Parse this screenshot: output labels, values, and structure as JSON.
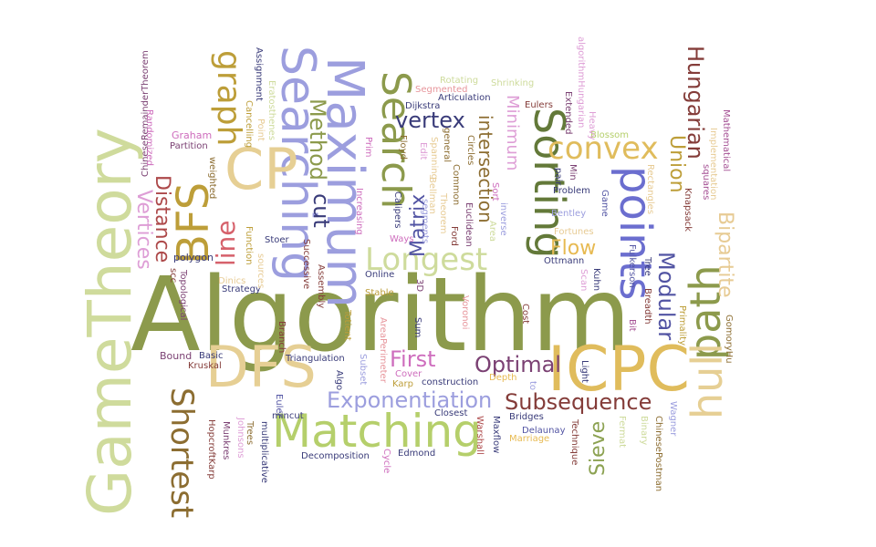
{
  "words": [
    {
      "text": "Algorithm",
      "color": "#8c9a4c"
    },
    {
      "text": "GameTheory",
      "color": "#cfdb9c"
    },
    {
      "text": "DFS",
      "color": "#e6cf94"
    },
    {
      "text": "ICPC",
      "color": "#e0bc5c"
    },
    {
      "text": "Matching",
      "color": "#b5cf6b"
    },
    {
      "text": "Maximum",
      "color": "#9c9ede"
    },
    {
      "text": "Searching",
      "color": "#9c9ede"
    },
    {
      "text": "Search",
      "color": "#8c9a4c"
    },
    {
      "text": "Sorting",
      "color": "#637939"
    },
    {
      "text": "points",
      "color": "#6b6ecf"
    },
    {
      "text": "path",
      "color": "#8c9a4c"
    },
    {
      "text": "hull",
      "color": "#e6cf94"
    },
    {
      "text": "CP",
      "color": "#e6cf94"
    },
    {
      "text": "BFS",
      "color": "#bd9e39"
    },
    {
      "text": "graph",
      "color": "#bd9e39"
    },
    {
      "text": "Shortest",
      "color": "#8c6d31"
    },
    {
      "text": "Longest",
      "color": "#cedb9c"
    },
    {
      "text": "convex",
      "color": "#e0bc5c"
    },
    {
      "text": "Exponentiation",
      "color": "#9c9ede"
    },
    {
      "text": "Subsequence",
      "color": "#843c39"
    },
    {
      "text": "Optimal",
      "color": "#7b4173"
    },
    {
      "text": "First",
      "color": "#ce6dbd"
    },
    {
      "text": "vertex",
      "color": "#393b79"
    },
    {
      "text": "Hungarian",
      "color": "#843c39"
    },
    {
      "text": "Bipartite",
      "color": "#e7cb94"
    },
    {
      "text": "Modular",
      "color": "#5254a3"
    },
    {
      "text": "Union",
      "color": "#bd9e39"
    },
    {
      "text": "Flow",
      "color": "#e7ba52"
    },
    {
      "text": "Sieve",
      "color": "#8ca252"
    },
    {
      "text": "line",
      "color": "#d6616b"
    },
    {
      "text": "Distance",
      "color": "#ad494a"
    },
    {
      "text": "Vertices",
      "color": "#de9ed6"
    },
    {
      "text": "Method",
      "color": "#8c9a4c"
    },
    {
      "text": "cut",
      "color": "#393b79"
    },
    {
      "text": "Matrix",
      "color": "#5254a3"
    },
    {
      "text": "intersection",
      "color": "#8c6d31"
    },
    {
      "text": "Minimum",
      "color": "#de9ed6"
    },
    {
      "text": "ChineseRemainderTheorem",
      "color": "#7b4173"
    },
    {
      "text": "Randomized",
      "color": "#ce6dbd"
    },
    {
      "text": "Graham",
      "color": "#ce6dbd"
    },
    {
      "text": "Partition",
      "color": "#7b4173"
    },
    {
      "text": "weighted",
      "color": "#8c6d31"
    },
    {
      "text": "Assignment",
      "color": "#393b79"
    },
    {
      "text": "Point",
      "color": "#e7cb94"
    },
    {
      "text": "Cancelling",
      "color": "#bd9e39"
    },
    {
      "text": "Eratosthenes",
      "color": "#cedb9c"
    },
    {
      "text": "Function",
      "color": "#bd9e39"
    },
    {
      "text": "polygon",
      "color": "#393b79"
    },
    {
      "text": "Stoer",
      "color": "#393b79"
    },
    {
      "text": "Dinics",
      "color": "#e7cb94"
    },
    {
      "text": "Strategy",
      "color": "#393b79"
    },
    {
      "text": "Topological",
      "color": "#7b4173"
    },
    {
      "text": "scc",
      "color": "#843c39"
    },
    {
      "text": "Bound",
      "color": "#7b4173"
    },
    {
      "text": "Basic",
      "color": "#393b79"
    },
    {
      "text": "Kruskal",
      "color": "#843c39"
    },
    {
      "text": "Rotating",
      "color": "#cedb9c"
    },
    {
      "text": "Shrinking",
      "color": "#cedb9c"
    },
    {
      "text": "Segmented",
      "color": "#e7969c"
    },
    {
      "text": "Articulation",
      "color": "#393b79"
    },
    {
      "text": "Dijkstra",
      "color": "#393b79"
    },
    {
      "text": "Eulers",
      "color": "#843c39"
    },
    {
      "text": "Blossom",
      "color": "#b5cf6b"
    },
    {
      "text": "Extended",
      "color": "#7b4173"
    },
    {
      "text": "algorithmHungarian",
      "color": "#de9ed6"
    },
    {
      "text": "Heavy",
      "color": "#de9ed6"
    },
    {
      "text": "Mathematical",
      "color": "#a55194"
    },
    {
      "text": "Implementation",
      "color": "#e7cb94"
    },
    {
      "text": "squares",
      "color": "#a55194"
    },
    {
      "text": "Knapsack",
      "color": "#843c39"
    },
    {
      "text": "Rectangles",
      "color": "#e7cb94"
    },
    {
      "text": "Problem",
      "color": "#393b79"
    },
    {
      "text": "pair",
      "color": "#393b79"
    },
    {
      "text": "Min",
      "color": "#7b4173"
    },
    {
      "text": "Game",
      "color": "#5254a3"
    },
    {
      "text": "Bentley",
      "color": "#9c9ede"
    },
    {
      "text": "Fortunes",
      "color": "#e7cb94"
    },
    {
      "text": "Ottmann",
      "color": "#393b79"
    },
    {
      "text": "Fulkerson",
      "color": "#5254a3"
    },
    {
      "text": "Tree",
      "color": "#393b79"
    },
    {
      "text": "Breadth",
      "color": "#843c39"
    },
    {
      "text": "Kuhn",
      "color": "#393b79"
    },
    {
      "text": "Scan",
      "color": "#de9ed6"
    },
    {
      "text": "Bit",
      "color": "#a55194"
    },
    {
      "text": "Primality",
      "color": "#bd9e39"
    },
    {
      "text": "GomoryHu",
      "color": "#8c6d31"
    },
    {
      "text": "Light",
      "color": "#393b79"
    },
    {
      "text": "Cost",
      "color": "#843c39"
    },
    {
      "text": "Prim",
      "color": "#ce6dbd"
    },
    {
      "text": "Floyd",
      "color": "#8c6d31"
    },
    {
      "text": "Edit",
      "color": "#de9ed6"
    },
    {
      "text": "Spanning",
      "color": "#e7cb94"
    },
    {
      "text": "Bellman",
      "color": "#e7cb94"
    },
    {
      "text": "Theorem",
      "color": "#e7cb94"
    },
    {
      "text": "general",
      "color": "#8c6d31"
    },
    {
      "text": "Common",
      "color": "#8c6d31"
    },
    {
      "text": "Circles",
      "color": "#8c6d31"
    },
    {
      "text": "Euclidean",
      "color": "#7b4173"
    },
    {
      "text": "Ford",
      "color": "#843c39"
    },
    {
      "text": "inverse",
      "color": "#9c9ede"
    },
    {
      "text": "Sort",
      "color": "#ce6dbd"
    },
    {
      "text": "Area",
      "color": "#cedb9c"
    },
    {
      "text": "segments",
      "color": "#9c9ede"
    },
    {
      "text": "Calipers",
      "color": "#393b79"
    },
    {
      "text": "Ways",
      "color": "#ce6dbd"
    },
    {
      "text": "Increasing",
      "color": "#ce6dbd"
    },
    {
      "text": "Successive",
      "color": "#843c39"
    },
    {
      "text": "Assembly",
      "color": "#843c39"
    },
    {
      "text": "Online",
      "color": "#393b79"
    },
    {
      "text": "Stable",
      "color": "#bd9e39"
    },
    {
      "text": "3D",
      "color": "#7b4173"
    },
    {
      "text": "Voronoi",
      "color": "#e7969c"
    },
    {
      "text": "AreaPerimeter",
      "color": "#e7969c"
    },
    {
      "text": "Totient",
      "color": "#bd9e39"
    },
    {
      "text": "Sum",
      "color": "#393b79"
    },
    {
      "text": "Branch",
      "color": "#843c39"
    },
    {
      "text": "Algo",
      "color": "#393b79"
    },
    {
      "text": "Triangulation",
      "color": "#393b79"
    },
    {
      "text": "mincut",
      "color": "#393b79"
    },
    {
      "text": "Subset",
      "color": "#9c9ede"
    },
    {
      "text": "Cover",
      "color": "#ce6dbd"
    },
    {
      "text": "Karp",
      "color": "#bd9e39"
    },
    {
      "text": "construction",
      "color": "#393b79"
    },
    {
      "text": "Depth",
      "color": "#e7ba52"
    },
    {
      "text": "to",
      "color": "#9c9ede"
    },
    {
      "text": "Closest",
      "color": "#393b79"
    },
    {
      "text": "Bridges",
      "color": "#393b79"
    },
    {
      "text": "Marriage",
      "color": "#e7ba52"
    },
    {
      "text": "Delaunay",
      "color": "#5254a3"
    },
    {
      "text": "Technique",
      "color": "#843c39"
    },
    {
      "text": "Fermat",
      "color": "#cedb9c"
    },
    {
      "text": "Binary",
      "color": "#cedb9c"
    },
    {
      "text": "ChinesePostman",
      "color": "#8c6d31"
    },
    {
      "text": "Wagner",
      "color": "#9c9ede"
    },
    {
      "text": "Warshall",
      "color": "#ad494a"
    },
    {
      "text": "Maxflow",
      "color": "#393b79"
    },
    {
      "text": "Edmond",
      "color": "#393b79"
    },
    {
      "text": "Cycle",
      "color": "#ce6dbd"
    },
    {
      "text": "Decomposition",
      "color": "#393b79"
    },
    {
      "text": "Euler",
      "color": "#5254a3"
    },
    {
      "text": "multiplicative",
      "color": "#393b79"
    },
    {
      "text": "Trees",
      "color": "#8c6d31"
    },
    {
      "text": "Johnsons",
      "color": "#de9ed6"
    },
    {
      "text": "Munkres",
      "color": "#7b4173"
    },
    {
      "text": "HopcroftKarp",
      "color": "#843c39"
    },
    {
      "text": "sources",
      "color": "#e7cb94"
    }
  ]
}
